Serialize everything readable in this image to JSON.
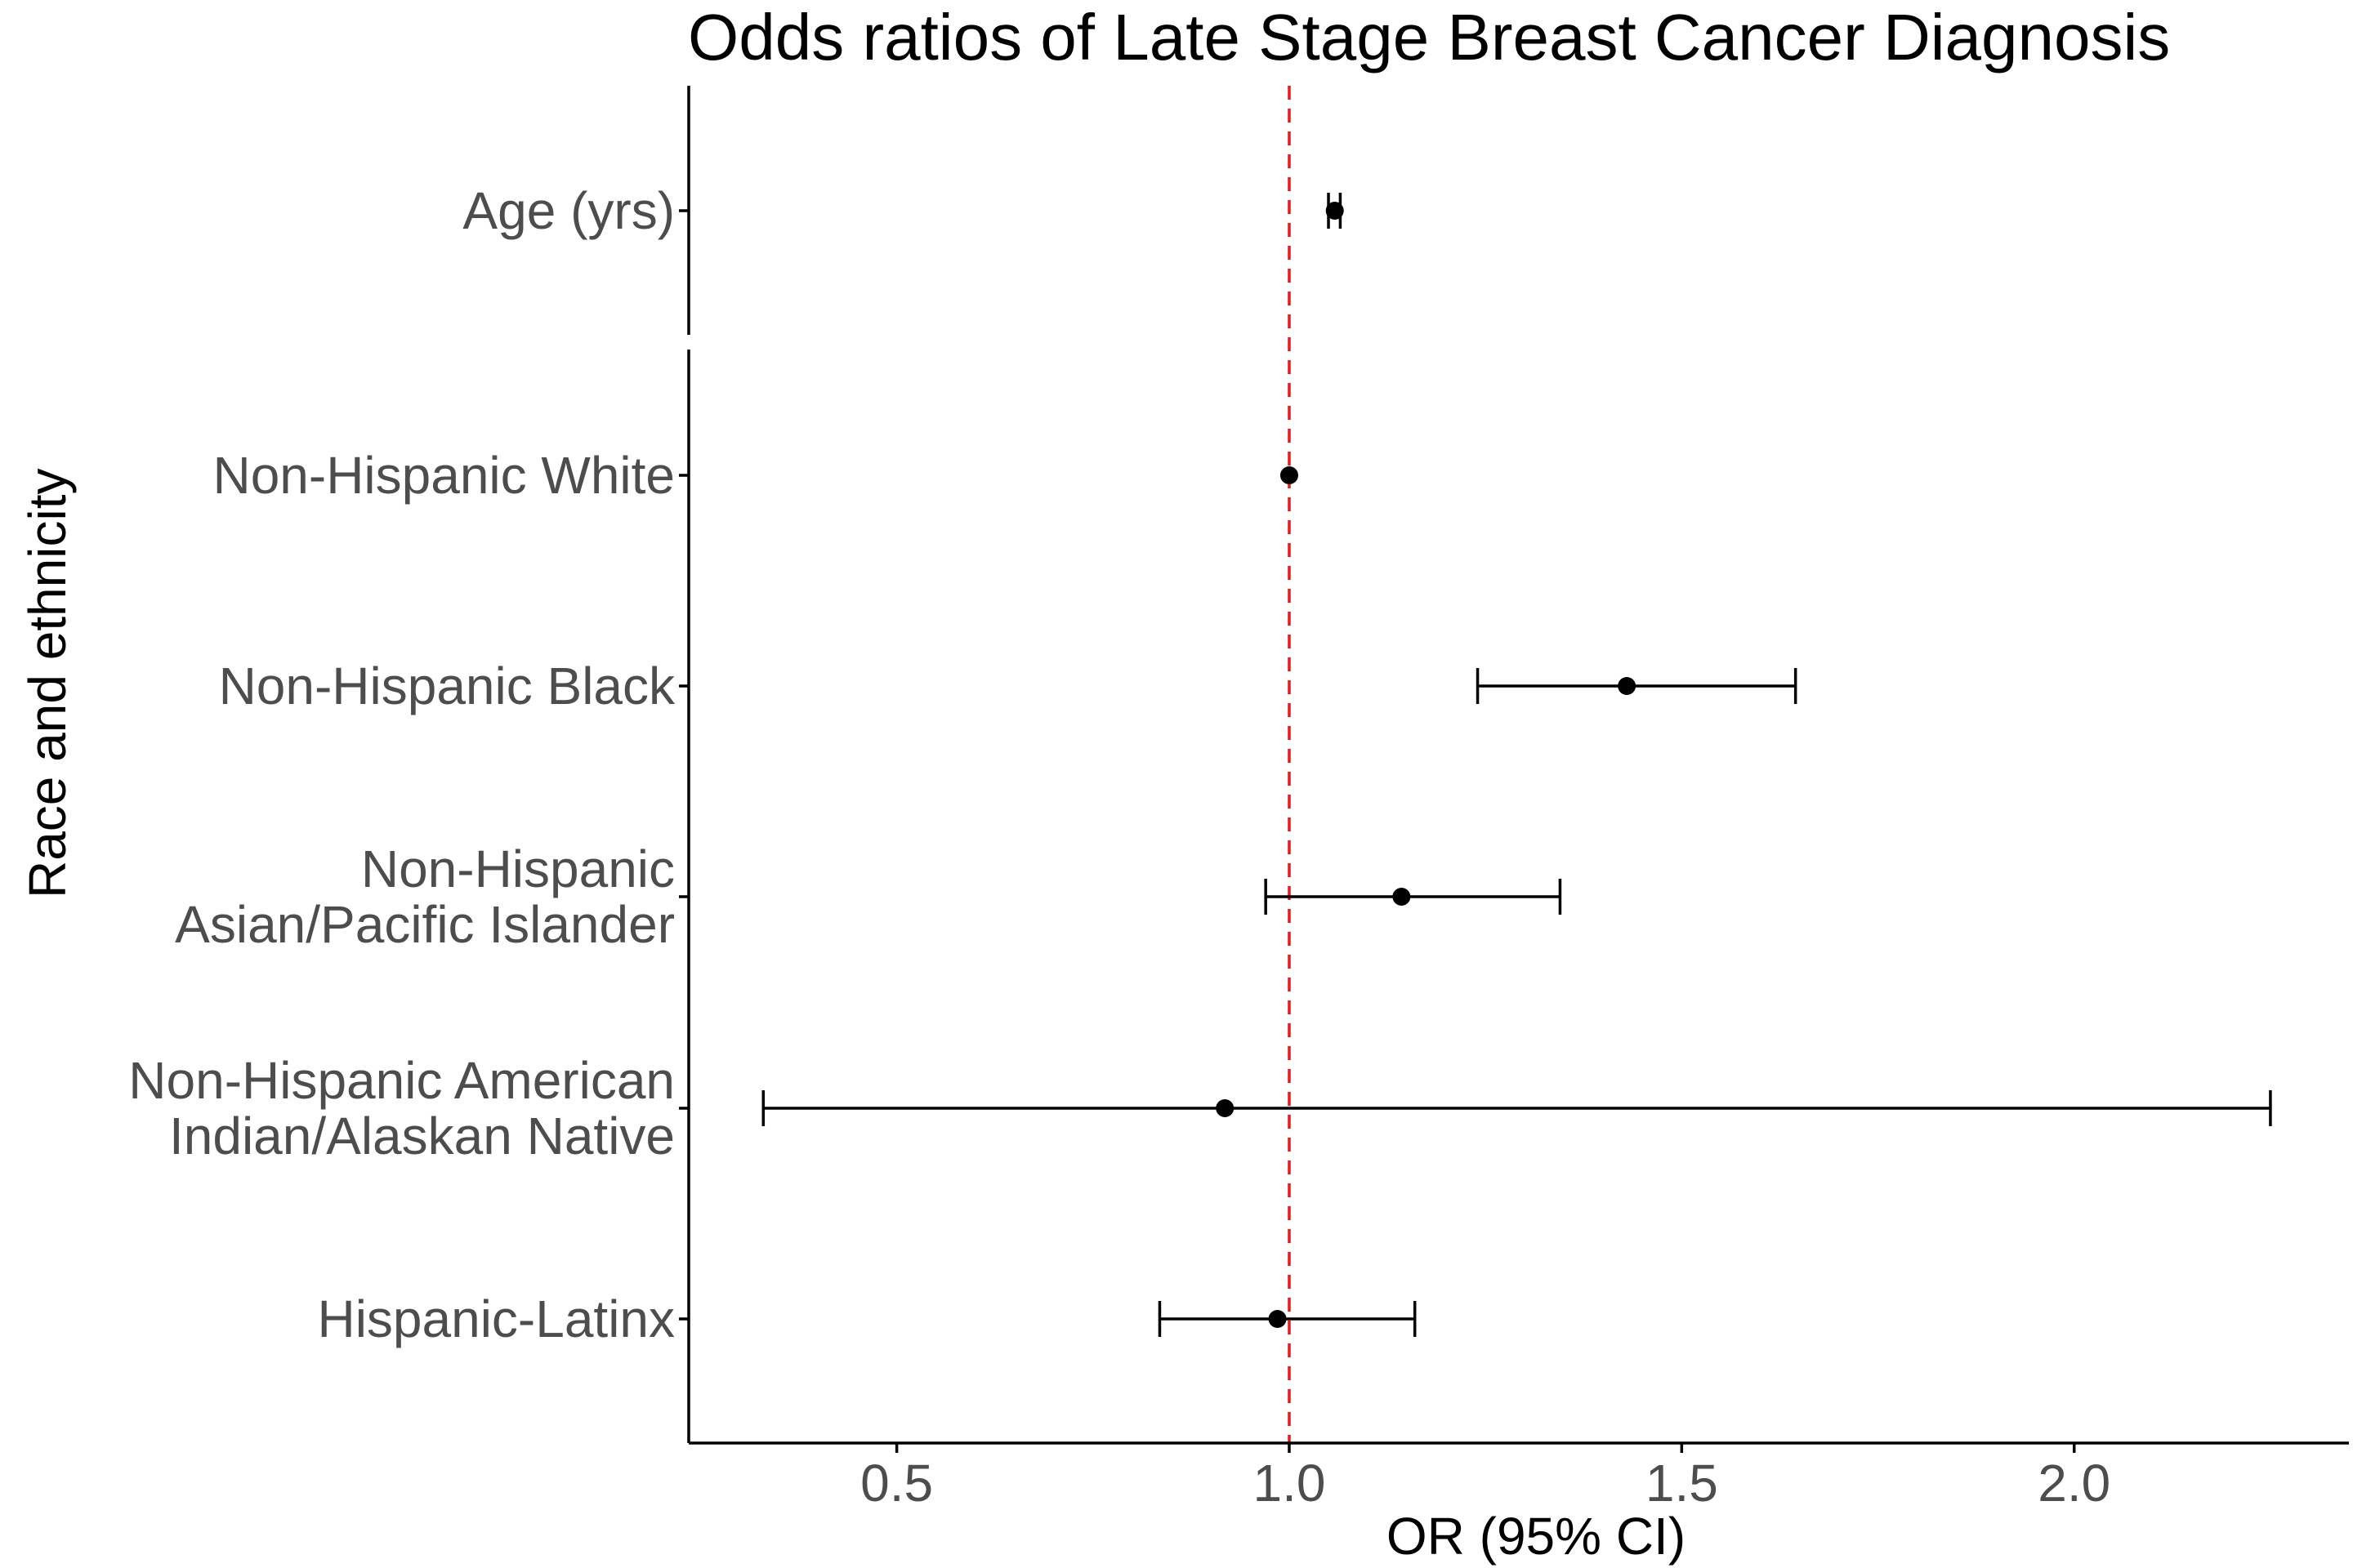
{
  "chart_data": {
    "type": "scatter",
    "subtype": "forest-plot",
    "title": "Odds ratios of Late Stage Breast Cancer Diagnosis",
    "xlabel": "OR (95% CI)",
    "ylabel": "Race and ethnicity",
    "xlim": [
      0.235,
      2.35
    ],
    "xticks": [
      "0.5",
      "1.0",
      "1.5",
      "2.0"
    ],
    "xtick_values": [
      0.5,
      1.0,
      1.5,
      2.0
    ],
    "reference_line": {
      "x": 1.0,
      "color": "#e41a1c",
      "style": "dashed"
    },
    "grid": false,
    "panels": [
      {
        "rows": [
          {
            "label": [
              "Age (yrs)"
            ],
            "or": 1.058,
            "lower": 1.05,
            "upper": 1.065
          }
        ]
      },
      {
        "rows": [
          {
            "label": [
              "Non-Hispanic White"
            ],
            "or": 1.0,
            "lower": 1.0,
            "upper": 1.0
          },
          {
            "label": [
              "Non-Hispanic Black"
            ],
            "or": 1.43,
            "lower": 1.24,
            "upper": 1.645
          },
          {
            "label": [
              "Non-Hispanic",
              "Asian/Pacific Islander"
            ],
            "or": 1.143,
            "lower": 0.97,
            "upper": 1.345
          },
          {
            "label": [
              "Non-Hispanic American",
              "Indian/Alaskan Native"
            ],
            "or": 0.918,
            "lower": 0.33,
            "upper": 2.25
          },
          {
            "label": [
              "Hispanic-Latinx"
            ],
            "or": 0.985,
            "lower": 0.835,
            "upper": 1.16
          }
        ]
      }
    ],
    "colors": {
      "point": "#000000",
      "errorbar": "#000000",
      "axis": "#000000",
      "reference": "#e41a1c"
    }
  }
}
